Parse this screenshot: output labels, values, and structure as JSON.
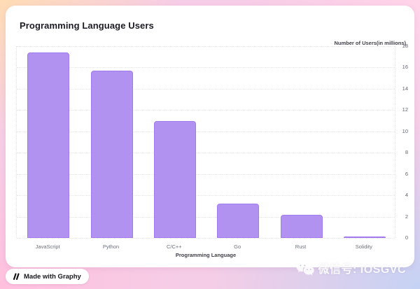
{
  "chart_data": {
    "type": "bar",
    "title": "Programming Language Users",
    "categories": [
      "JavaScript",
      "Python",
      "C/C++",
      "Go",
      "Rust",
      "Solidity"
    ],
    "values": [
      17.4,
      15.7,
      11,
      3.2,
      2.2,
      0.1
    ],
    "xlabel": "Programming Language",
    "ylabel": "Number of Users(in millions)",
    "ylim": [
      0,
      18
    ],
    "ytick_step": 2,
    "yticks": [
      0,
      2,
      4,
      6,
      8,
      10,
      12,
      14,
      16,
      18
    ],
    "yaxis_side": "right",
    "grid": "horizontal-dotted",
    "legend": "none",
    "bar_color": "#b192f1",
    "bar_border_color": "#a37aee"
  },
  "badge": {
    "label": "Made with Graphy",
    "icon": "graphy-logo-icon"
  },
  "watermark": {
    "text": "微信号: IOSGVC",
    "icon": "wechat-icon"
  },
  "colors": {
    "card_background": "#ffffff",
    "title_text": "#1b1b24",
    "axis_title_text": "#3f3f48",
    "tick_text": "#5f6370",
    "gridline": "#e4e4e9",
    "bg_corner_top_left": "#ffdcb4",
    "bg_corner_top_right": "#ffd4e9",
    "bg_corner_bottom_left": "#ffc0de",
    "bg_corner_bottom_right": "#c5d2f4"
  }
}
